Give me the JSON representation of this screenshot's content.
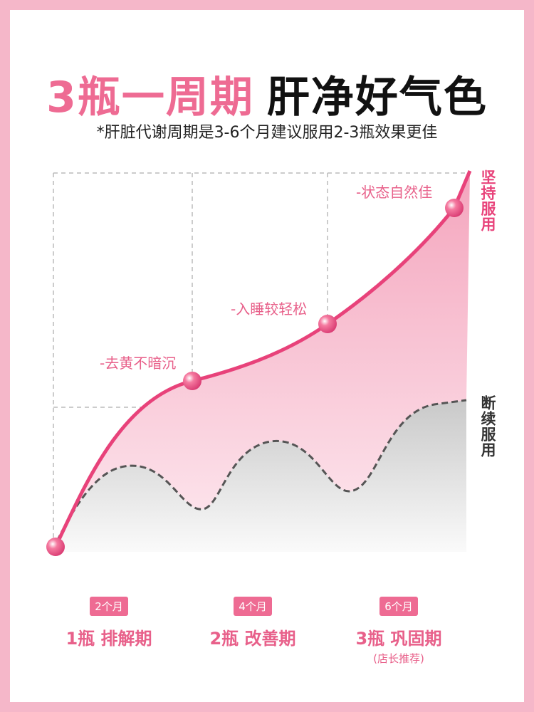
{
  "header": {
    "title_highlight": "3瓶一周期",
    "title_main": "肝净好气色",
    "subtitle": "*肝脏代谢周期是3-6个月建议服用2-3瓶效果更佳"
  },
  "curve_labels": [
    "-去黄不暗沉",
    "-入睡较轻松",
    "-状态自然佳"
  ],
  "side_labels": {
    "steady": "坚持服用",
    "intermittent": "断续服用"
  },
  "stages": [
    {
      "badge": "2个月",
      "label": "1瓶 排解期"
    },
    {
      "badge": "4个月",
      "label": "2瓶 改善期"
    },
    {
      "badge": "6个月",
      "label": "3瓶 巩固期",
      "note": "(店长推荐)"
    }
  ]
}
